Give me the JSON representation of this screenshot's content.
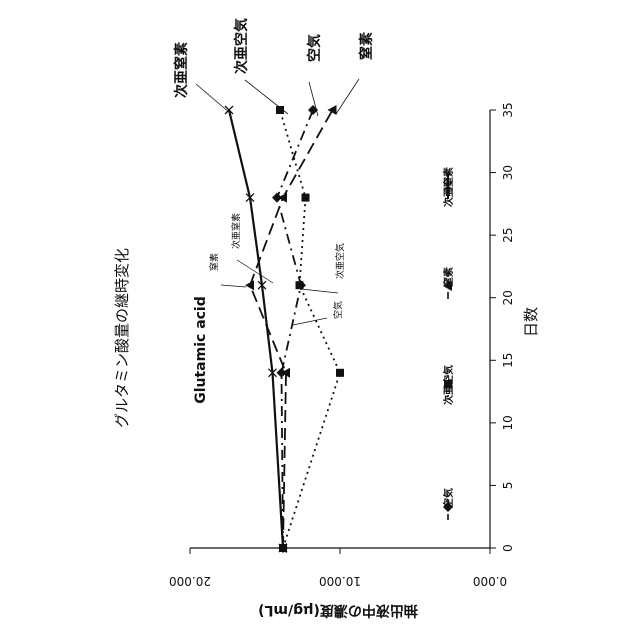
{
  "chart_data": {
    "type": "line",
    "orientation": "rotated 90 degrees clockwise (x axis vertical on right, y axis horizontal at bottom)",
    "title": "グルタミン酸量の継時変化",
    "subtitle": "Glutamic acid",
    "xlabel": "日数",
    "ylabel": "抽出液中の濃度(μg/mL)",
    "x_ticks": [
      "0",
      "5",
      "10",
      "15",
      "20",
      "25",
      "30",
      "35"
    ],
    "y_ticks": [
      "0.000",
      "10.000",
      "20.000"
    ],
    "xlim": [
      0,
      35
    ],
    "ylim": [
      0,
      20
    ],
    "grid": false,
    "legend_position": "top (left side of rotated page)",
    "series": [
      {
        "name": "空気",
        "x": [
          0,
          14,
          21,
          28,
          35
        ],
        "values": [
          13.8,
          13.9,
          12.6,
          14.2,
          11.8
        ],
        "color": "#111111",
        "dash": "10 5 2 5",
        "marker": "diamond"
      },
      {
        "name": "次亜空気",
        "x": [
          0,
          14,
          21,
          28,
          35
        ],
        "values": [
          13.8,
          10.0,
          12.7,
          12.3,
          14.0
        ],
        "color": "#111111",
        "dash": "2 4",
        "marker": "square"
      },
      {
        "name": "窒素",
        "x": [
          0,
          14,
          21,
          28,
          35
        ],
        "values": [
          13.8,
          13.6,
          16.0,
          13.8,
          10.5
        ],
        "color": "#111111",
        "dash": "12 6",
        "marker": "triangle"
      },
      {
        "name": "次亜窒素",
        "x": [
          0,
          14,
          21,
          28,
          35
        ],
        "values": [
          13.8,
          14.5,
          15.2,
          16.0,
          17.4
        ],
        "color": "#111111",
        "dash": "",
        "marker": "x"
      }
    ],
    "annotations": {
      "big": [
        "次亜窒素",
        "次亜空気",
        "空気",
        "窒素"
      ],
      "small": [
        "窒素",
        "次亜窒素",
        "次亜空気",
        "空気"
      ]
    }
  }
}
